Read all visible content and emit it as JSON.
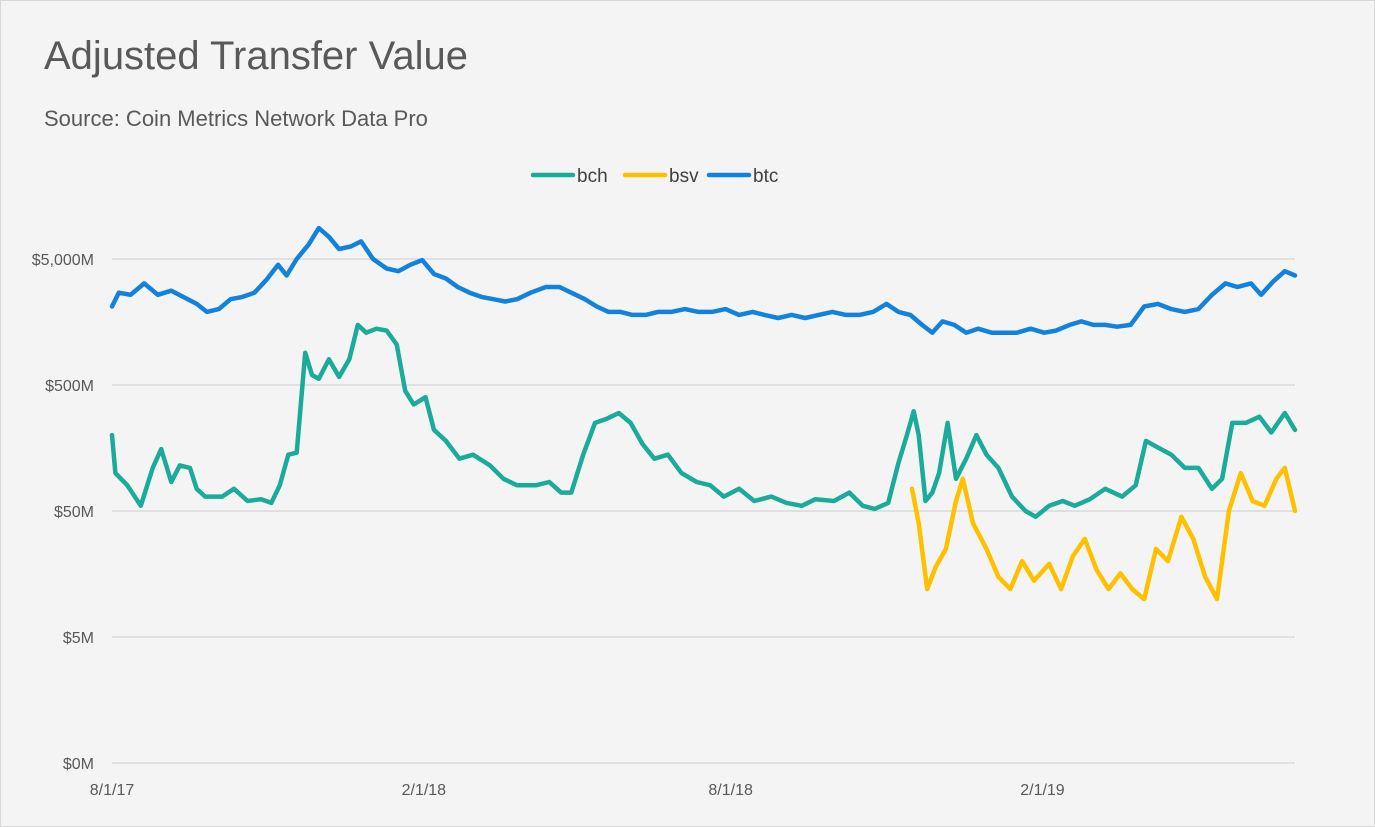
{
  "header": {
    "title": "Adjusted Transfer Value",
    "subtitle": "Source:  Coin Metrics Network Data Pro"
  },
  "chart_data": {
    "type": "line",
    "title": "Adjusted Transfer Value",
    "subtitle": "Source:  Coin Metrics Network Data Pro",
    "y_scale": "log",
    "y_ticks": [
      "$0M",
      "$5M",
      "$50M",
      "$500M",
      "$5,000M"
    ],
    "x_ticks": [
      "8/1/17",
      "2/1/18",
      "8/1/18",
      "2/1/19"
    ],
    "x_range": [
      "2017-08-01",
      "2019-06-30"
    ],
    "legend_position": "top",
    "grid": true,
    "colors": {
      "bch": "#1aab9b",
      "bsv": "#ffc000",
      "btc": "#1282dc"
    },
    "series": [
      {
        "name": "bch",
        "points": [
          [
            "2017-08-01",
            200
          ],
          [
            "2017-08-03",
            100
          ],
          [
            "2017-08-10",
            80
          ],
          [
            "2017-08-18",
            55
          ],
          [
            "2017-08-25",
            110
          ],
          [
            "2017-08-30",
            155
          ],
          [
            "2017-09-05",
            85
          ],
          [
            "2017-09-10",
            115
          ],
          [
            "2017-09-16",
            110
          ],
          [
            "2017-09-20",
            75
          ],
          [
            "2017-09-25",
            65
          ],
          [
            "2017-10-05",
            65
          ],
          [
            "2017-10-12",
            75
          ],
          [
            "2017-10-20",
            60
          ],
          [
            "2017-10-28",
            62
          ],
          [
            "2017-11-03",
            58
          ],
          [
            "2017-11-08",
            80
          ],
          [
            "2017-11-13",
            140
          ],
          [
            "2017-11-18",
            145
          ],
          [
            "2017-11-23",
            900
          ],
          [
            "2017-11-27",
            600
          ],
          [
            "2017-12-01",
            560
          ],
          [
            "2017-12-07",
            800
          ],
          [
            "2017-12-13",
            580
          ],
          [
            "2017-12-19",
            800
          ],
          [
            "2017-12-24",
            1500
          ],
          [
            "2017-12-29",
            1300
          ],
          [
            "2018-01-04",
            1400
          ],
          [
            "2018-01-10",
            1350
          ],
          [
            "2018-01-16",
            1050
          ],
          [
            "2018-01-21",
            450
          ],
          [
            "2018-01-26",
            350
          ],
          [
            "2018-02-02",
            400
          ],
          [
            "2018-02-07",
            220
          ],
          [
            "2018-02-14",
            180
          ],
          [
            "2018-02-22",
            130
          ],
          [
            "2018-03-02",
            140
          ],
          [
            "2018-03-12",
            115
          ],
          [
            "2018-03-20",
            90
          ],
          [
            "2018-03-28",
            80
          ],
          [
            "2018-04-08",
            80
          ],
          [
            "2018-04-16",
            85
          ],
          [
            "2018-04-23",
            70
          ],
          [
            "2018-04-29",
            70
          ],
          [
            "2018-05-06",
            140
          ],
          [
            "2018-05-13",
            250
          ],
          [
            "2018-05-20",
            270
          ],
          [
            "2018-05-27",
            300
          ],
          [
            "2018-06-03",
            250
          ],
          [
            "2018-06-10",
            170
          ],
          [
            "2018-06-17",
            130
          ],
          [
            "2018-06-25",
            140
          ],
          [
            "2018-07-03",
            100
          ],
          [
            "2018-07-12",
            85
          ],
          [
            "2018-07-20",
            80
          ],
          [
            "2018-07-28",
            65
          ],
          [
            "2018-08-06",
            75
          ],
          [
            "2018-08-15",
            60
          ],
          [
            "2018-08-25",
            65
          ],
          [
            "2018-09-03",
            58
          ],
          [
            "2018-09-12",
            55
          ],
          [
            "2018-09-20",
            62
          ],
          [
            "2018-10-01",
            60
          ],
          [
            "2018-10-10",
            70
          ],
          [
            "2018-10-18",
            55
          ],
          [
            "2018-10-25",
            52
          ],
          [
            "2018-11-02",
            58
          ],
          [
            "2018-11-08",
            120
          ],
          [
            "2018-11-13",
            200
          ],
          [
            "2018-11-17",
            310
          ],
          [
            "2018-11-20",
            200
          ],
          [
            "2018-11-24",
            60
          ],
          [
            "2018-11-28",
            70
          ],
          [
            "2018-12-02",
            100
          ],
          [
            "2018-12-07",
            250
          ],
          [
            "2018-12-12",
            90
          ],
          [
            "2018-12-18",
            130
          ],
          [
            "2018-12-24",
            200
          ],
          [
            "2018-12-30",
            140
          ],
          [
            "2019-01-06",
            110
          ],
          [
            "2019-01-14",
            65
          ],
          [
            "2019-01-22",
            50
          ],
          [
            "2019-01-28",
            45
          ],
          [
            "2019-02-05",
            55
          ],
          [
            "2019-02-13",
            60
          ],
          [
            "2019-02-20",
            55
          ],
          [
            "2019-03-01",
            62
          ],
          [
            "2019-03-10",
            75
          ],
          [
            "2019-03-20",
            65
          ],
          [
            "2019-03-28",
            80
          ],
          [
            "2019-04-03",
            180
          ],
          [
            "2019-04-10",
            160
          ],
          [
            "2019-04-18",
            140
          ],
          [
            "2019-04-26",
            110
          ],
          [
            "2019-05-04",
            110
          ],
          [
            "2019-05-12",
            75
          ],
          [
            "2019-05-18",
            90
          ],
          [
            "2019-05-24",
            250
          ],
          [
            "2019-06-01",
            250
          ],
          [
            "2019-06-09",
            280
          ],
          [
            "2019-06-16",
            210
          ],
          [
            "2019-06-24",
            300
          ],
          [
            "2019-06-30",
            220
          ]
        ]
      },
      {
        "name": "bsv",
        "points": [
          [
            "2018-11-16",
            75
          ],
          [
            "2018-11-20",
            40
          ],
          [
            "2018-11-25",
            12
          ],
          [
            "2018-11-30",
            18
          ],
          [
            "2018-12-06",
            25
          ],
          [
            "2018-12-12",
            60
          ],
          [
            "2018-12-16",
            90
          ],
          [
            "2018-12-22",
            40
          ],
          [
            "2018-12-30",
            25
          ],
          [
            "2019-01-06",
            15
          ],
          [
            "2019-01-13",
            12
          ],
          [
            "2019-01-20",
            20
          ],
          [
            "2019-01-27",
            14
          ],
          [
            "2019-02-05",
            19
          ],
          [
            "2019-02-12",
            12
          ],
          [
            "2019-02-19",
            22
          ],
          [
            "2019-02-26",
            30
          ],
          [
            "2019-03-05",
            17
          ],
          [
            "2019-03-12",
            12
          ],
          [
            "2019-03-19",
            16
          ],
          [
            "2019-03-26",
            12
          ],
          [
            "2019-04-02",
            10
          ],
          [
            "2019-04-09",
            25
          ],
          [
            "2019-04-16",
            20
          ],
          [
            "2019-04-24",
            45
          ],
          [
            "2019-05-01",
            30
          ],
          [
            "2019-05-08",
            15
          ],
          [
            "2019-05-15",
            10
          ],
          [
            "2019-05-22",
            50
          ],
          [
            "2019-05-29",
            100
          ],
          [
            "2019-06-05",
            60
          ],
          [
            "2019-06-12",
            55
          ],
          [
            "2019-06-19",
            90
          ],
          [
            "2019-06-24",
            110
          ],
          [
            "2019-06-30",
            50
          ]
        ]
      },
      {
        "name": "btc",
        "points": [
          [
            "2017-08-01",
            2100
          ],
          [
            "2017-08-05",
            2700
          ],
          [
            "2017-08-12",
            2600
          ],
          [
            "2017-08-20",
            3200
          ],
          [
            "2017-08-28",
            2600
          ],
          [
            "2017-09-05",
            2800
          ],
          [
            "2017-09-12",
            2500
          ],
          [
            "2017-09-20",
            2200
          ],
          [
            "2017-09-26",
            1900
          ],
          [
            "2017-10-03",
            2000
          ],
          [
            "2017-10-10",
            2400
          ],
          [
            "2017-10-17",
            2500
          ],
          [
            "2017-10-24",
            2700
          ],
          [
            "2017-10-31",
            3400
          ],
          [
            "2017-11-07",
            4500
          ],
          [
            "2017-11-12",
            3700
          ],
          [
            "2017-11-18",
            5000
          ],
          [
            "2017-11-25",
            6500
          ],
          [
            "2017-12-01",
            8800
          ],
          [
            "2017-12-07",
            7500
          ],
          [
            "2017-12-13",
            6000
          ],
          [
            "2017-12-20",
            6300
          ],
          [
            "2017-12-26",
            6900
          ],
          [
            "2018-01-02",
            5000
          ],
          [
            "2018-01-10",
            4200
          ],
          [
            "2018-01-17",
            4000
          ],
          [
            "2018-01-24",
            4500
          ],
          [
            "2018-01-31",
            4900
          ],
          [
            "2018-02-07",
            3800
          ],
          [
            "2018-02-14",
            3500
          ],
          [
            "2018-02-21",
            3000
          ],
          [
            "2018-02-28",
            2700
          ],
          [
            "2018-03-07",
            2500
          ],
          [
            "2018-03-14",
            2400
          ],
          [
            "2018-03-21",
            2300
          ],
          [
            "2018-03-28",
            2400
          ],
          [
            "2018-04-05",
            2700
          ],
          [
            "2018-04-14",
            3000
          ],
          [
            "2018-04-22",
            3000
          ],
          [
            "2018-04-29",
            2700
          ],
          [
            "2018-05-07",
            2400
          ],
          [
            "2018-05-14",
            2100
          ],
          [
            "2018-05-21",
            1900
          ],
          [
            "2018-05-28",
            1900
          ],
          [
            "2018-06-04",
            1800
          ],
          [
            "2018-06-12",
            1800
          ],
          [
            "2018-06-19",
            1900
          ],
          [
            "2018-06-27",
            1900
          ],
          [
            "2018-07-05",
            2000
          ],
          [
            "2018-07-13",
            1900
          ],
          [
            "2018-07-21",
            1900
          ],
          [
            "2018-07-29",
            2000
          ],
          [
            "2018-08-06",
            1800
          ],
          [
            "2018-08-14",
            1900
          ],
          [
            "2018-08-21",
            1800
          ],
          [
            "2018-08-29",
            1700
          ],
          [
            "2018-09-06",
            1800
          ],
          [
            "2018-09-14",
            1700
          ],
          [
            "2018-09-22",
            1800
          ],
          [
            "2018-09-30",
            1900
          ],
          [
            "2018-10-08",
            1800
          ],
          [
            "2018-10-16",
            1800
          ],
          [
            "2018-10-24",
            1900
          ],
          [
            "2018-11-01",
            2200
          ],
          [
            "2018-11-08",
            1900
          ],
          [
            "2018-11-15",
            1800
          ],
          [
            "2018-11-22",
            1500
          ],
          [
            "2018-11-28",
            1300
          ],
          [
            "2018-12-04",
            1600
          ],
          [
            "2018-12-11",
            1500
          ],
          [
            "2018-12-18",
            1300
          ],
          [
            "2018-12-25",
            1400
          ],
          [
            "2019-01-02",
            1300
          ],
          [
            "2019-01-09",
            1300
          ],
          [
            "2019-01-17",
            1300
          ],
          [
            "2019-01-25",
            1400
          ],
          [
            "2019-02-02",
            1300
          ],
          [
            "2019-02-09",
            1350
          ],
          [
            "2019-02-17",
            1500
          ],
          [
            "2019-02-24",
            1600
          ],
          [
            "2019-03-03",
            1500
          ],
          [
            "2019-03-10",
            1500
          ],
          [
            "2019-03-17",
            1450
          ],
          [
            "2019-03-25",
            1500
          ],
          [
            "2019-04-02",
            2100
          ],
          [
            "2019-04-10",
            2200
          ],
          [
            "2019-04-18",
            2000
          ],
          [
            "2019-04-26",
            1900
          ],
          [
            "2019-05-04",
            2000
          ],
          [
            "2019-05-12",
            2600
          ],
          [
            "2019-05-20",
            3200
          ],
          [
            "2019-05-27",
            3000
          ],
          [
            "2019-06-04",
            3200
          ],
          [
            "2019-06-10",
            2600
          ],
          [
            "2019-06-17",
            3300
          ],
          [
            "2019-06-24",
            4000
          ],
          [
            "2019-06-30",
            3700
          ]
        ]
      }
    ]
  }
}
